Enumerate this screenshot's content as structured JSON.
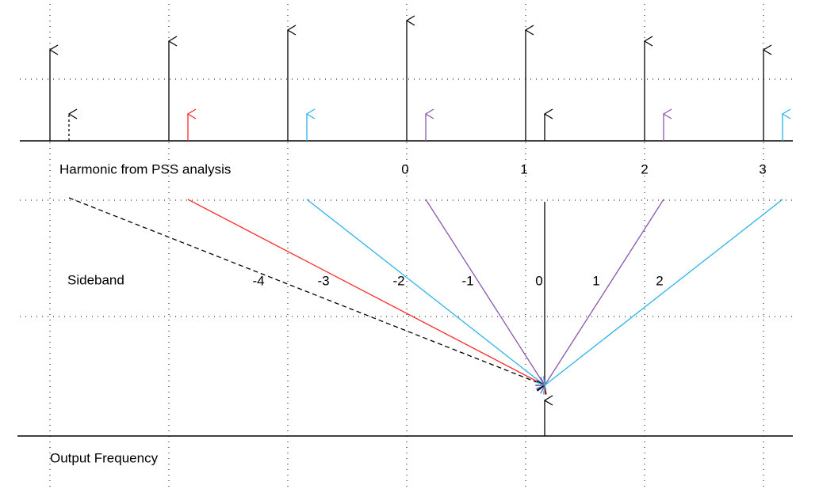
{
  "harmonic_axis": {
    "title": "Harmonic  from PSS analysis",
    "labels": [
      "0",
      "1",
      "2",
      "3"
    ]
  },
  "sideband_axis": {
    "title": "Sideband",
    "labels": [
      "-4",
      "-3",
      "-2",
      "-1",
      "0",
      "1",
      "2"
    ]
  },
  "output_axis": {
    "title": "Output Frequency"
  }
}
